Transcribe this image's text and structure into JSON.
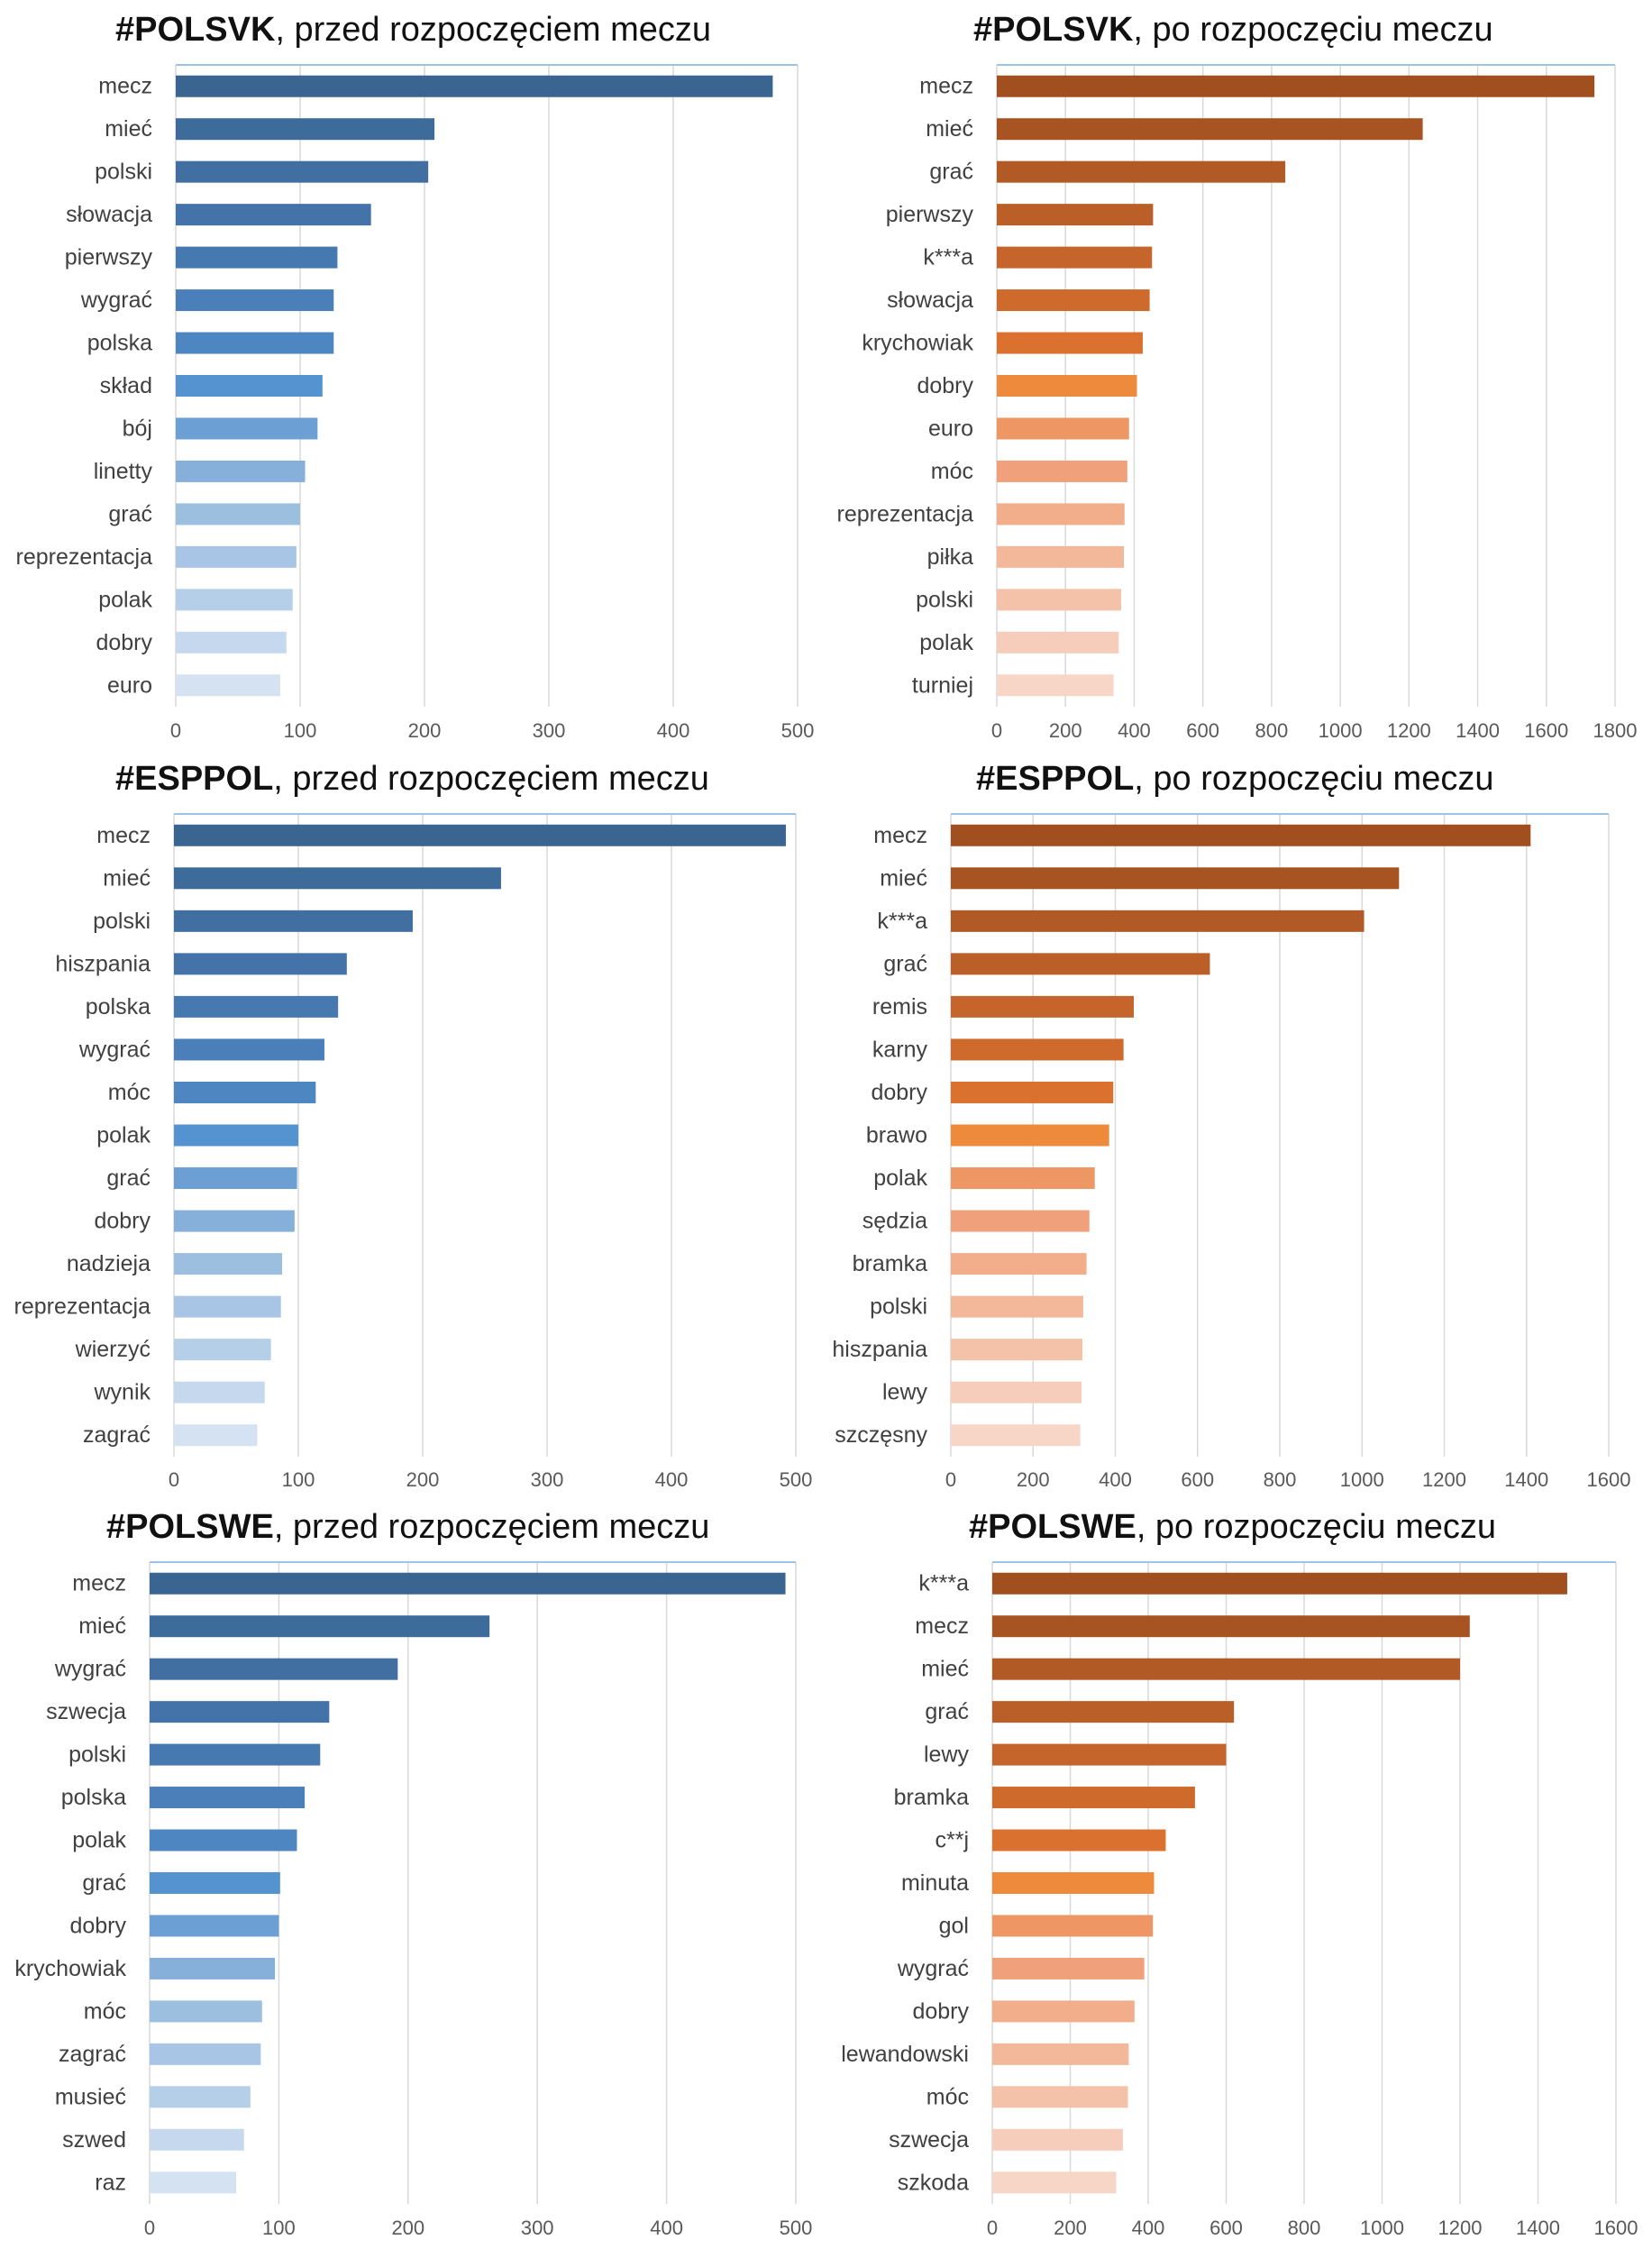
{
  "chart_data": [
    {
      "type": "bar",
      "orientation": "horizontal",
      "palette": "blue",
      "title_bold": "#POLSVK",
      "title_rest": ", przed rozpoczęciem meczu",
      "categories": [
        "mecz",
        "mieć",
        "polski",
        "słowacja",
        "pierwszy",
        "wygrać",
        "polska",
        "skład",
        "bój",
        "linetty",
        "grać",
        "reprezentacja",
        "polak",
        "dobry",
        "euro"
      ],
      "values": [
        480,
        208,
        203,
        157,
        130,
        127,
        127,
        118,
        114,
        104,
        100,
        97,
        94,
        89,
        84
      ],
      "xlim": [
        0,
        500
      ],
      "ticks": [
        0,
        100,
        200,
        300,
        400,
        500
      ],
      "grid": true
    },
    {
      "type": "bar",
      "orientation": "horizontal",
      "palette": "orange",
      "title_bold": "#POLSVK",
      "title_rest": ", po rozpoczęciu meczu",
      "categories": [
        "mecz",
        "mieć",
        "grać",
        "pierwszy",
        "k***a",
        "słowacja",
        "krychowiak",
        "dobry",
        "euro",
        "móc",
        "reprezentacja",
        "piłka",
        "polski",
        "polak",
        "turniej"
      ],
      "values": [
        1740,
        1240,
        840,
        455,
        452,
        445,
        425,
        408,
        385,
        380,
        372,
        370,
        362,
        355,
        340
      ],
      "xlim": [
        0,
        1800
      ],
      "ticks": [
        0,
        200,
        400,
        600,
        800,
        1000,
        1200,
        1400,
        1600,
        1800
      ],
      "grid": true
    },
    {
      "type": "bar",
      "orientation": "horizontal",
      "palette": "blue",
      "title_bold": "#ESPPOL",
      "title_rest": ", przed rozpoczęciem meczu",
      "categories": [
        "mecz",
        "mieć",
        "polski",
        "hiszpania",
        "polska",
        "wygrać",
        "móc",
        "polak",
        "grać",
        "dobry",
        "nadzieja",
        "reprezentacja",
        "wierzyć",
        "wynik",
        "zagrać"
      ],
      "values": [
        492,
        263,
        192,
        139,
        132,
        121,
        114,
        100,
        99,
        97,
        87,
        86,
        78,
        73,
        67
      ],
      "xlim": [
        0,
        500
      ],
      "ticks": [
        0,
        100,
        200,
        300,
        400,
        500
      ],
      "grid": true
    },
    {
      "type": "bar",
      "orientation": "horizontal",
      "palette": "orange",
      "title_bold": "#ESPPOL",
      "title_rest": ", po rozpoczęciu meczu",
      "categories": [
        "mecz",
        "mieć",
        "k***a",
        "grać",
        "remis",
        "karny",
        "dobry",
        "brawo",
        "polak",
        "sędzia",
        "bramka",
        "polski",
        "hiszpania",
        "lewy",
        "szczęsny"
      ],
      "values": [
        1410,
        1090,
        1005,
        630,
        445,
        420,
        395,
        385,
        350,
        337,
        330,
        322,
        320,
        318,
        315
      ],
      "xlim": [
        0,
        1600
      ],
      "ticks": [
        0,
        200,
        400,
        600,
        800,
        1000,
        1200,
        1400,
        1600
      ],
      "grid": true
    },
    {
      "type": "bar",
      "orientation": "horizontal",
      "palette": "blue",
      "title_bold": "#POLSWE",
      "title_rest": ", przed rozpoczęciem meczu",
      "categories": [
        "mecz",
        "mieć",
        "wygrać",
        "szwecja",
        "polski",
        "polska",
        "polak",
        "grać",
        "dobry",
        "krychowiak",
        "móc",
        "zagrać",
        "musieć",
        "szwed",
        "raz"
      ],
      "values": [
        492,
        263,
        192,
        139,
        132,
        120,
        114,
        101,
        100,
        97,
        87,
        86,
        78,
        73,
        67
      ],
      "xlim": [
        0,
        500
      ],
      "ticks": [
        0,
        100,
        200,
        300,
        400,
        500
      ],
      "grid": true
    },
    {
      "type": "bar",
      "orientation": "horizontal",
      "palette": "orange",
      "title_bold": "#POLSWE",
      "title_rest": ", po rozpoczęciu meczu",
      "categories": [
        "k***a",
        "mecz",
        "mieć",
        "grać",
        "lewy",
        "bramka",
        "c**j",
        "minuta",
        "gol",
        "wygrać",
        "dobry",
        "lewandowski",
        "móc",
        "szwecja",
        "szkoda"
      ],
      "values": [
        1475,
        1225,
        1200,
        620,
        600,
        520,
        445,
        415,
        412,
        390,
        365,
        350,
        348,
        335,
        318
      ],
      "xlim": [
        0,
        1600
      ],
      "ticks": [
        0,
        200,
        400,
        600,
        800,
        1000,
        1200,
        1400,
        1600
      ],
      "grid": true
    }
  ],
  "colors": {
    "blue": [
      "#3a6591",
      "#3d6b9a",
      "#416fa2",
      "#4473aa",
      "#4779b1",
      "#4a7fb9",
      "#4e86c1",
      "#5592d0",
      "#6c9fd4",
      "#86b0da",
      "#9cbfe0",
      "#a9c5e6",
      "#b6cfe9",
      "#c6d8ee",
      "#d4e2f2"
    ],
    "orange": [
      "#a14f1f",
      "#a85422",
      "#b25a26",
      "#bb5f28",
      "#c5652b",
      "#cf6a2d",
      "#da712f",
      "#ed8a3b",
      "#ef9665",
      "#f0a07a",
      "#f2ad8b",
      "#f3b79a",
      "#f4c2a9",
      "#f6ccba",
      "#f7d6c8"
    ]
  }
}
